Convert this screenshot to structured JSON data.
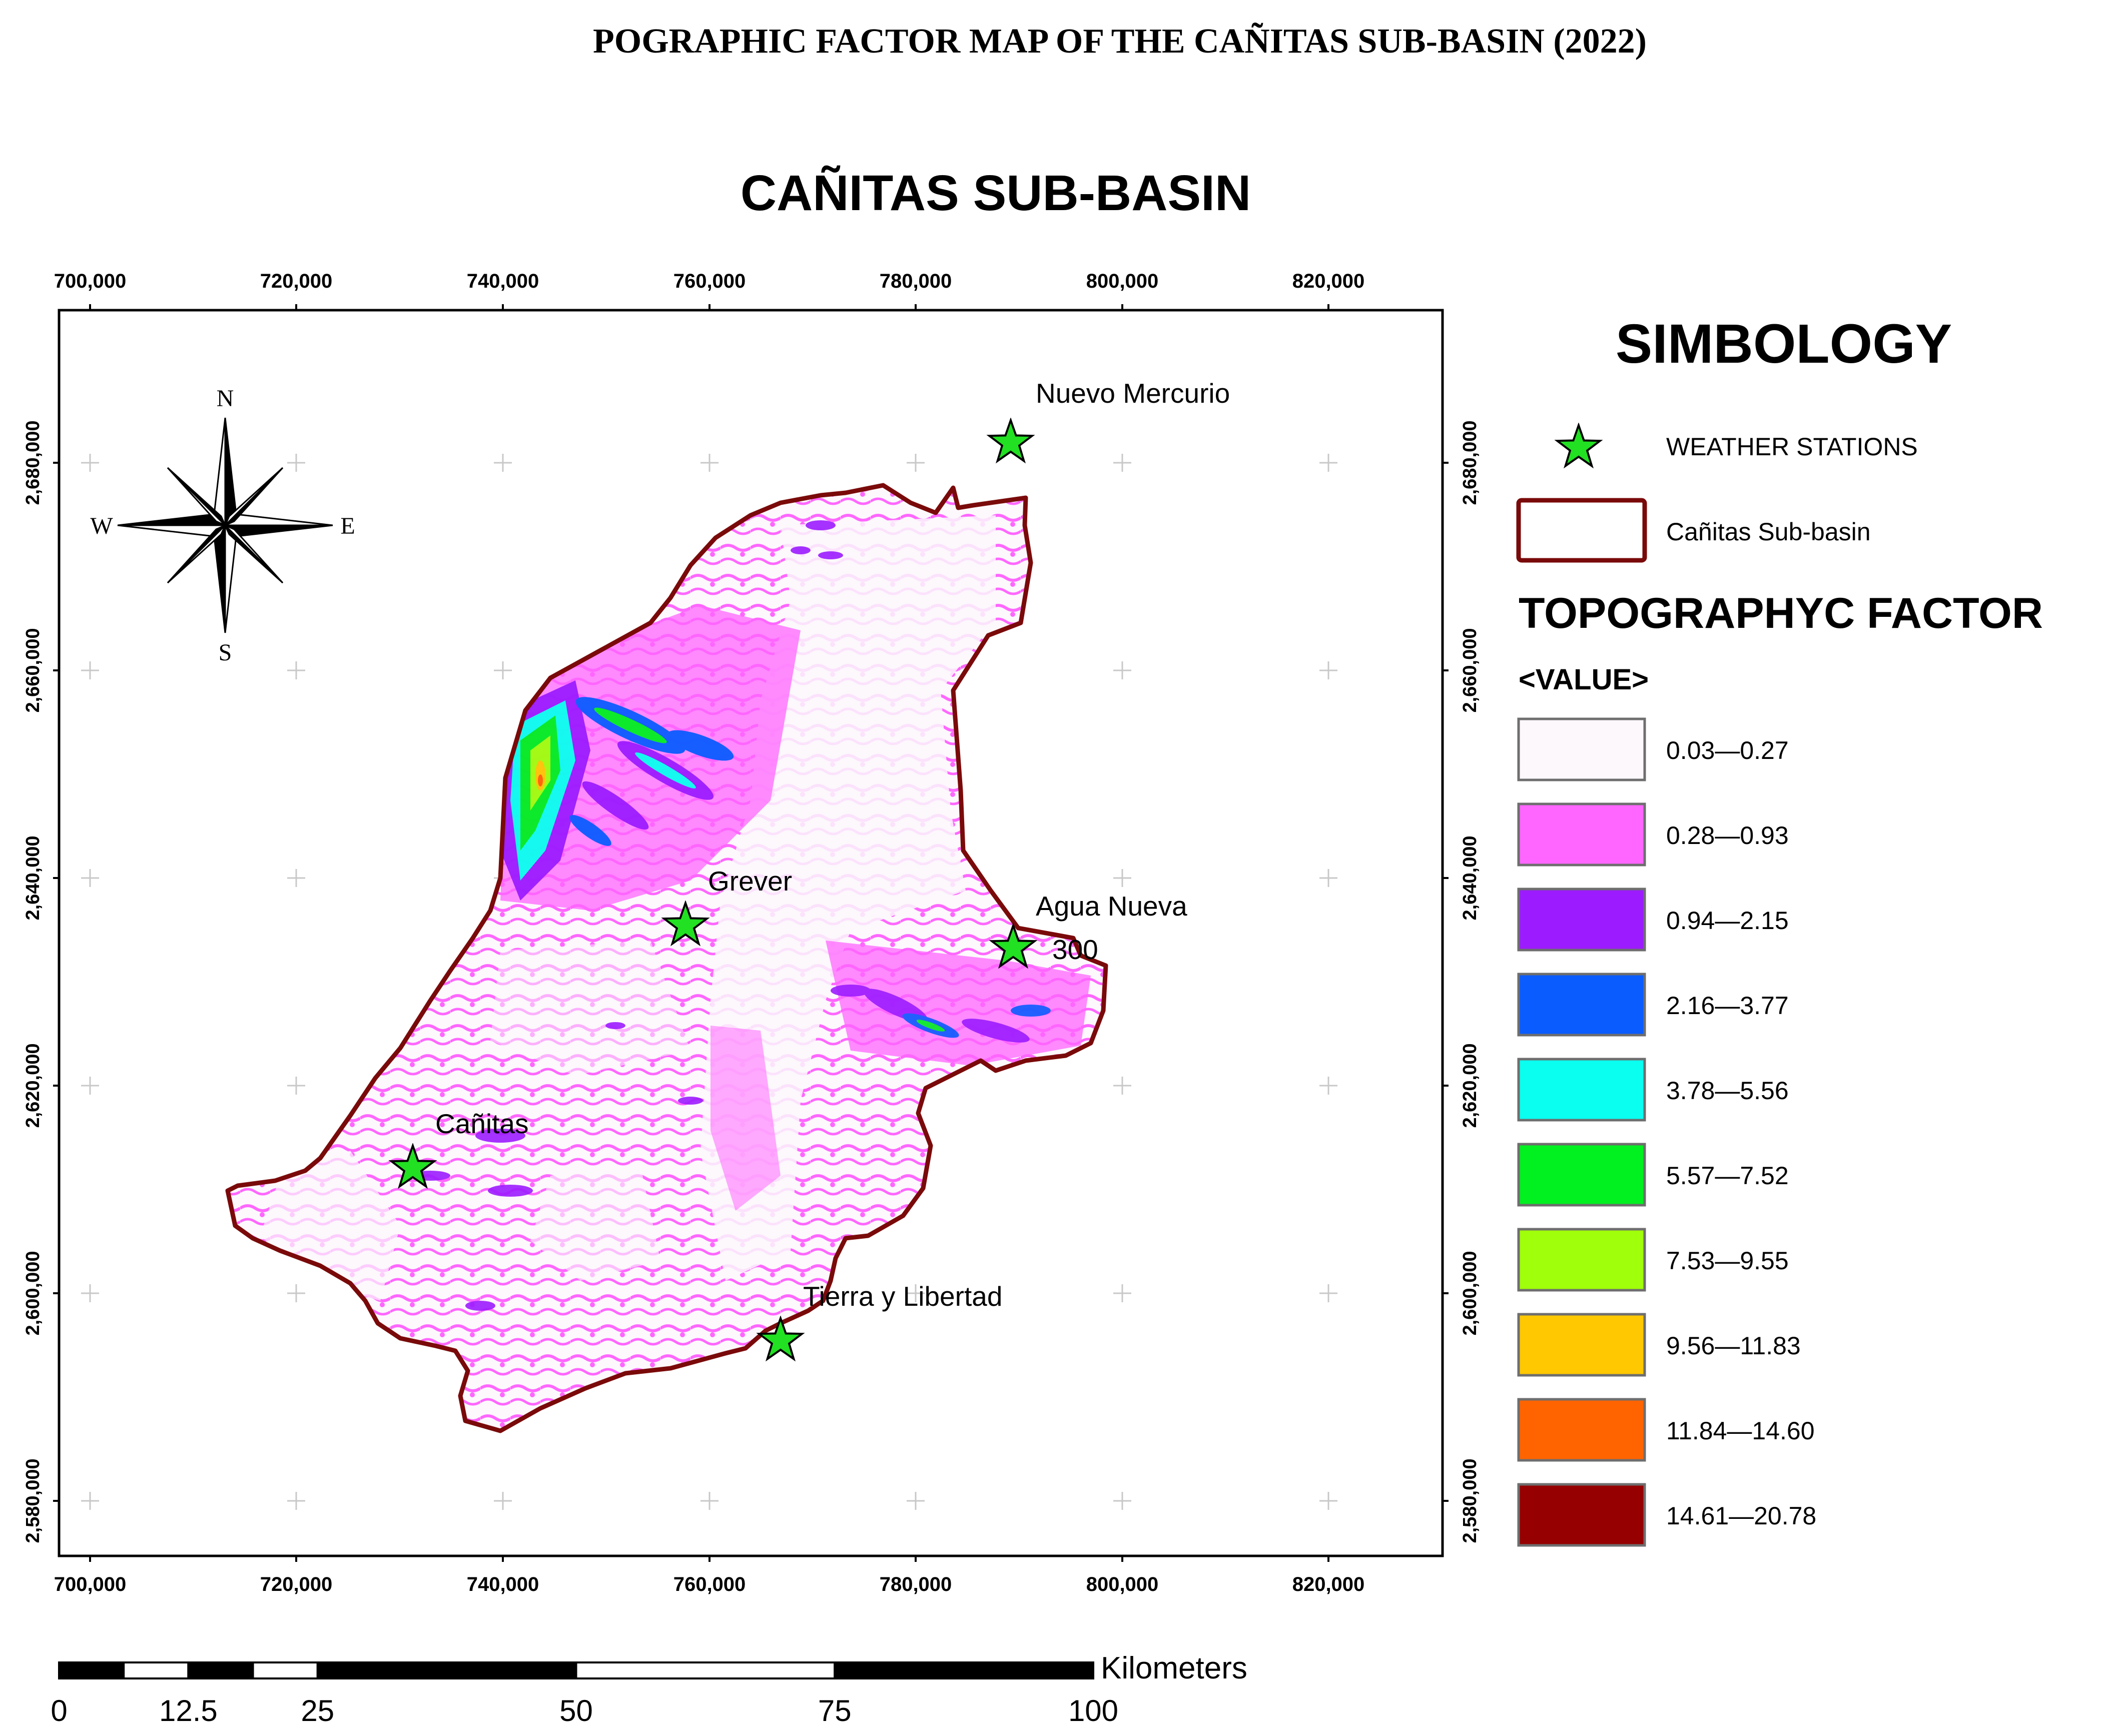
{
  "page_title": "POGRAPHIC FACTOR MAP OF THE CAÑITAS SUB-BASIN (2022)",
  "map_title": "CAÑITAS SUB-BASIN",
  "x_ticks": [
    "700,000",
    "720,000",
    "740,000",
    "760,000",
    "780,000",
    "800,000",
    "820,000"
  ],
  "y_ticks": [
    "2,680,000",
    "2,660,000",
    "2,640,000",
    "2,620,000",
    "2,600,000",
    "2,580,000"
  ],
  "north_arrow": {
    "n": "N",
    "s": "S",
    "e": "E",
    "w": "W"
  },
  "stations": [
    {
      "name": "Nuevo Mercurio"
    },
    {
      "name": "Grever"
    },
    {
      "name": "Agua Nueva"
    },
    {
      "name": "Cañitas"
    },
    {
      "name": "Tierra y Libertad"
    }
  ],
  "stray_label": "300",
  "legend": {
    "title": "SIMBOLOGY",
    "stations_label": "WEATHER STATIONS",
    "boundary_label": "Cañitas Sub-basin",
    "factor_title": "TOPOGRAPHYC FACTOR",
    "value_label": "<VALUE>",
    "classes": [
      {
        "label": "0.03—0.27",
        "color": "#fcf8fc"
      },
      {
        "label": "0.28—0.93",
        "color": "#ff66ff"
      },
      {
        "label": "0.94—2.15",
        "color": "#9c1cff"
      },
      {
        "label": "2.16—3.77",
        "color": "#0a5cff"
      },
      {
        "label": "3.78—5.56",
        "color": "#0afff0"
      },
      {
        "label": "5.57—7.52",
        "color": "#00f020"
      },
      {
        "label": "7.53—9.55",
        "color": "#a0ff0a"
      },
      {
        "label": "9.56—11.83",
        "color": "#ffc800"
      },
      {
        "label": "11.84—14.60",
        "color": "#ff6400"
      },
      {
        "label": "14.61—20.78",
        "color": "#960000"
      }
    ]
  },
  "scale_bar": {
    "unit": "Kilometers",
    "labels": [
      "0",
      "12.5",
      "25",
      "50",
      "75",
      "100"
    ]
  },
  "colors": {
    "boundary": "#7a0a0a",
    "star": "#22e022",
    "frame": "#000000"
  }
}
